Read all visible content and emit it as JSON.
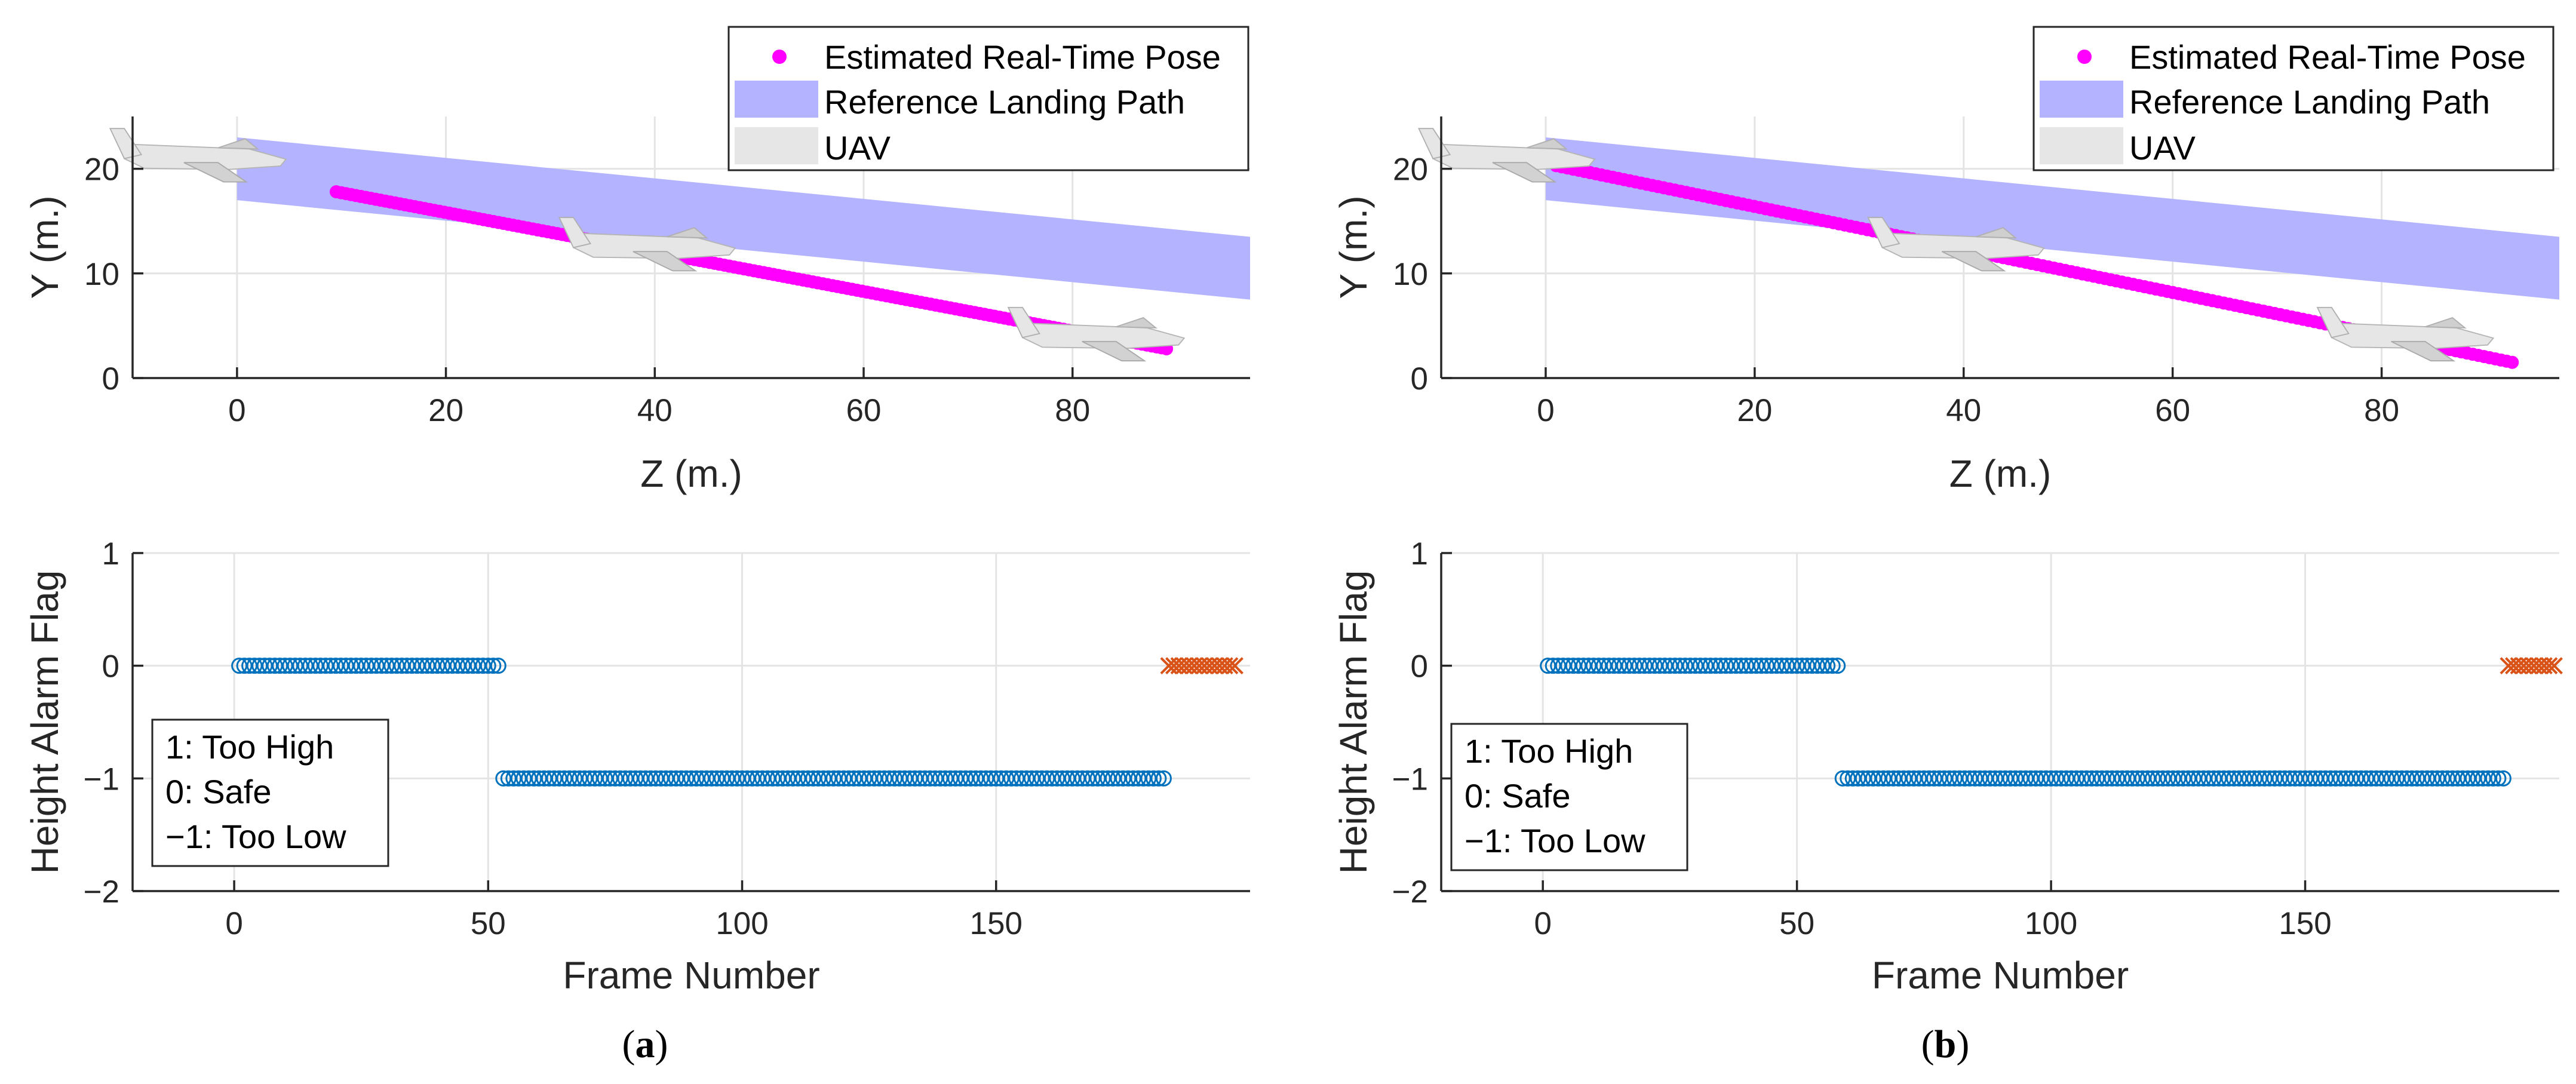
{
  "colors": {
    "pose": "#ff00ff",
    "reference": "#b3b3ff",
    "uav": "#e6e6e6",
    "flag": "#0072bd",
    "flag_end": "#d95319"
  },
  "panels": [
    {
      "caption_letter": "a",
      "uav_z": [
        -4,
        39,
        82
      ]
    },
    {
      "caption_letter": "b",
      "uav_z": [
        -4,
        39,
        82
      ]
    }
  ],
  "legend": {
    "pose": "Estimated Real-Time Pose",
    "reference": "Reference Landing Path",
    "uav": "UAV"
  },
  "flag_legend": [
    "1:  Too High",
    "0:  Safe",
    "−1: Too Low"
  ],
  "chart_data": [
    {
      "panel": "a-top",
      "type": "scatter",
      "xlabel": "Z (m.)",
      "ylabel": "Y (m.)",
      "xlim": [
        -10,
        97
      ],
      "ylim": [
        0,
        25
      ],
      "xticks": [
        0,
        20,
        40,
        60,
        80
      ],
      "yticks": [
        0,
        10,
        20
      ],
      "series": [
        {
          "name": "Estimated Real-Time Pose",
          "kind": "line-points",
          "x_range": [
            9.5,
            89
          ],
          "y_range": [
            17.8,
            2.8
          ]
        },
        {
          "name": "Reference Landing Path",
          "kind": "band",
          "x": [
            0,
            97
          ],
          "upper": [
            23,
            13.5
          ],
          "lower": [
            17,
            7.5
          ]
        }
      ]
    },
    {
      "panel": "a-bottom",
      "type": "scatter",
      "xlabel": "Frame Number",
      "ylabel": "Height Alarm Flag",
      "xlim": [
        -20,
        200
      ],
      "ylim": [
        -2,
        1
      ],
      "xticks": [
        0,
        50,
        100,
        150
      ],
      "yticks": [
        -2,
        -1,
        0,
        1
      ],
      "series": [
        {
          "name": "0: Safe",
          "marker": "o",
          "frames": [
            1,
            52
          ],
          "value": 0
        },
        {
          "name": "-1: Too Low",
          "marker": "o",
          "frames": [
            53,
            183
          ],
          "value": -1
        },
        {
          "name": "end",
          "marker": "x",
          "frames": [
            184,
            197
          ],
          "value": 0
        }
      ]
    },
    {
      "panel": "b-top",
      "type": "scatter",
      "xlabel": "Z (m.)",
      "ylabel": "Y (m.)",
      "xlim": [
        -10,
        97
      ],
      "ylim": [
        0,
        25
      ],
      "xticks": [
        0,
        20,
        40,
        60,
        80
      ],
      "yticks": [
        0,
        10,
        20
      ],
      "series": [
        {
          "name": "Estimated Real-Time Pose",
          "kind": "line-points",
          "x_range": [
            1,
            92.5
          ],
          "y_range": [
            20.3,
            1.5
          ]
        },
        {
          "name": "Reference Landing Path",
          "kind": "band",
          "x": [
            0,
            97
          ],
          "upper": [
            23,
            13.5
          ],
          "lower": [
            17,
            7.5
          ]
        }
      ]
    },
    {
      "panel": "b-bottom",
      "type": "scatter",
      "xlabel": "Frame Number",
      "ylabel": "Height Alarm Flag",
      "xlim": [
        -20,
        200
      ],
      "ylim": [
        -2,
        1
      ],
      "xticks": [
        0,
        50,
        100,
        150
      ],
      "yticks": [
        -2,
        -1,
        0,
        1
      ],
      "series": [
        {
          "name": "0: Safe",
          "marker": "o",
          "frames": [
            1,
            58
          ],
          "value": 0
        },
        {
          "name": "-1: Too Low",
          "marker": "o",
          "frames": [
            59,
            189
          ],
          "value": -1
        },
        {
          "name": "end",
          "marker": "x",
          "frames": [
            190,
            199
          ],
          "value": 0
        }
      ]
    }
  ]
}
